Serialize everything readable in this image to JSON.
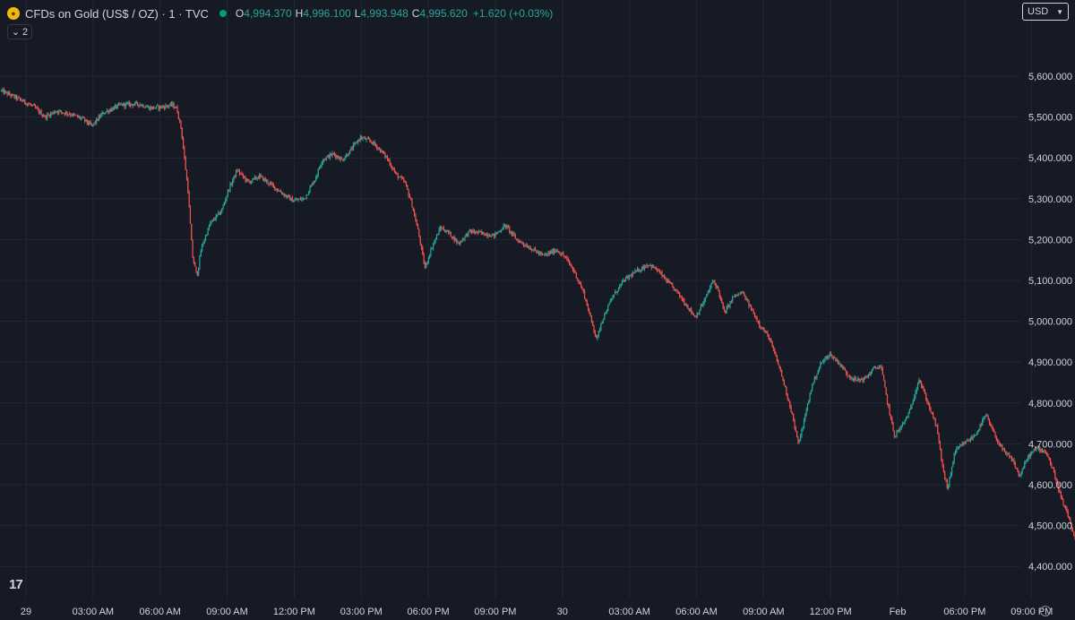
{
  "header": {
    "symbol_title": "CFDs on Gold (US$ / OZ) · 1 · TVC",
    "ohlc": {
      "o_label": "O",
      "o_value": "4,994.370",
      "h_label": "H",
      "h_value": "4,996.100",
      "l_label": "L",
      "l_value": "4,993.948",
      "c_label": "C",
      "c_value": "4,995.620",
      "change": "+1.620 (+0.03%)"
    },
    "collapse_label": "2",
    "currency": "USD",
    "logo_text": "17"
  },
  "colors": {
    "background": "#161a25",
    "grid": "#232734",
    "up": "#26a69a",
    "down": "#ef5350",
    "axis_text": "#d1d4dc"
  },
  "chart_data": {
    "type": "line",
    "style": "candlestick",
    "interval": "1 minute",
    "ylim": [
      4400,
      5600
    ],
    "y_ticks": [
      5600,
      5500,
      5400,
      5300,
      5200,
      5100,
      5000,
      4900,
      4800,
      4700,
      4600,
      4500,
      4400
    ],
    "y_tick_labels": [
      "5,600.000",
      "5,500.000",
      "5,400.000",
      "5,300.000",
      "5,200.000",
      "5,100.000",
      "5,000.000",
      "4,900.000",
      "4,800.000",
      "4,700.000",
      "4,600.000",
      "4,500.000",
      "4,400.000"
    ],
    "x_ticks": [
      {
        "t": 0,
        "label": "29"
      },
      {
        "t": 3,
        "label": "03:00 AM"
      },
      {
        "t": 6,
        "label": "06:00 AM"
      },
      {
        "t": 9,
        "label": "09:00 AM"
      },
      {
        "t": 12,
        "label": "12:00 PM"
      },
      {
        "t": 15,
        "label": "03:00 PM"
      },
      {
        "t": 18,
        "label": "06:00 PM"
      },
      {
        "t": 21,
        "label": "09:00 PM"
      },
      {
        "t": 24,
        "label": "30"
      },
      {
        "t": 27,
        "label": "03:00 AM"
      },
      {
        "t": 30,
        "label": "06:00 AM"
      },
      {
        "t": 33,
        "label": "09:00 AM"
      },
      {
        "t": 36,
        "label": "12:00 PM"
      },
      {
        "t": 39,
        "label": "Feb"
      },
      {
        "t": 42,
        "label": "06:00 PM"
      },
      {
        "t": 45,
        "label": "09:00 PM"
      }
    ],
    "xlim": [
      -1.1,
      47.2
    ],
    "grid": true,
    "series": [
      {
        "values": [
          [
            -1.1,
            5565
          ],
          [
            -0.3,
            5545
          ],
          [
            0.4,
            5525
          ],
          [
            0.9,
            5500
          ],
          [
            1.4,
            5515
          ],
          [
            2.0,
            5508
          ],
          [
            2.6,
            5495
          ],
          [
            3.0,
            5478
          ],
          [
            3.5,
            5510
          ],
          [
            4.3,
            5530
          ],
          [
            5.1,
            5532
          ],
          [
            5.6,
            5522
          ],
          [
            6.2,
            5525
          ],
          [
            6.6,
            5530
          ],
          [
            6.8,
            5520
          ],
          [
            7.0,
            5470
          ],
          [
            7.3,
            5320
          ],
          [
            7.5,
            5160
          ],
          [
            7.7,
            5110
          ],
          [
            7.9,
            5180
          ],
          [
            8.3,
            5240
          ],
          [
            8.8,
            5270
          ],
          [
            9.1,
            5320
          ],
          [
            9.5,
            5370
          ],
          [
            10.0,
            5340
          ],
          [
            10.5,
            5355
          ],
          [
            11.0,
            5335
          ],
          [
            11.6,
            5310
          ],
          [
            12.0,
            5295
          ],
          [
            12.5,
            5300
          ],
          [
            13.0,
            5350
          ],
          [
            13.3,
            5395
          ],
          [
            13.8,
            5410
          ],
          [
            14.2,
            5395
          ],
          [
            14.6,
            5420
          ],
          [
            15.0,
            5450
          ],
          [
            15.5,
            5440
          ],
          [
            15.8,
            5425
          ],
          [
            16.2,
            5400
          ],
          [
            16.6,
            5360
          ],
          [
            17.0,
            5340
          ],
          [
            17.3,
            5290
          ],
          [
            17.6,
            5220
          ],
          [
            17.9,
            5130
          ],
          [
            18.2,
            5180
          ],
          [
            18.6,
            5230
          ],
          [
            19.0,
            5215
          ],
          [
            19.4,
            5190
          ],
          [
            19.9,
            5220
          ],
          [
            20.5,
            5215
          ],
          [
            21.0,
            5210
          ],
          [
            21.5,
            5235
          ],
          [
            22.0,
            5200
          ],
          [
            22.6,
            5180
          ],
          [
            23.2,
            5160
          ],
          [
            23.8,
            5175
          ],
          [
            24.2,
            5155
          ],
          [
            24.6,
            5120
          ],
          [
            25.0,
            5070
          ],
          [
            25.3,
            5010
          ],
          [
            25.6,
            4955
          ],
          [
            25.8,
            5000
          ],
          [
            26.3,
            5060
          ],
          [
            26.8,
            5100
          ],
          [
            27.3,
            5120
          ],
          [
            27.9,
            5140
          ],
          [
            28.3,
            5125
          ],
          [
            28.7,
            5100
          ],
          [
            29.2,
            5070
          ],
          [
            29.6,
            5040
          ],
          [
            30.0,
            5010
          ],
          [
            30.4,
            5050
          ],
          [
            30.8,
            5100
          ],
          [
            31.0,
            5080
          ],
          [
            31.3,
            5020
          ],
          [
            31.7,
            5060
          ],
          [
            32.1,
            5070
          ],
          [
            32.5,
            5030
          ],
          [
            32.9,
            4990
          ],
          [
            33.3,
            4960
          ],
          [
            33.8,
            4880
          ],
          [
            34.3,
            4780
          ],
          [
            34.6,
            4700
          ],
          [
            34.8,
            4740
          ],
          [
            35.2,
            4840
          ],
          [
            35.6,
            4895
          ],
          [
            36.0,
            4920
          ],
          [
            36.4,
            4900
          ],
          [
            36.8,
            4870
          ],
          [
            37.2,
            4855
          ],
          [
            37.6,
            4860
          ],
          [
            38.0,
            4885
          ],
          [
            38.3,
            4890
          ],
          [
            38.6,
            4800
          ],
          [
            38.9,
            4720
          ],
          [
            39.2,
            4740
          ],
          [
            39.6,
            4780
          ],
          [
            40.0,
            4860
          ],
          [
            40.4,
            4800
          ],
          [
            40.8,
            4740
          ],
          [
            41.1,
            4630
          ],
          [
            41.3,
            4590
          ],
          [
            41.6,
            4680
          ],
          [
            42.0,
            4700
          ],
          [
            42.5,
            4720
          ],
          [
            43.0,
            4770
          ],
          [
            43.4,
            4720
          ],
          [
            43.8,
            4680
          ],
          [
            44.2,
            4660
          ],
          [
            44.5,
            4620
          ],
          [
            44.9,
            4670
          ],
          [
            45.3,
            4690
          ],
          [
            45.7,
            4680
          ],
          [
            46.1,
            4620
          ],
          [
            46.4,
            4560
          ],
          [
            46.7,
            4520
          ],
          [
            46.9,
            4480
          ],
          [
            47.1,
            4440
          ]
        ]
      }
    ]
  }
}
